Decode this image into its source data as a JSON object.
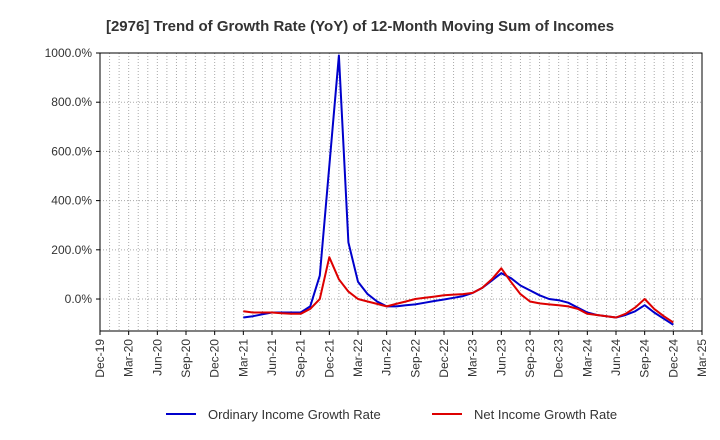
{
  "chart_data": {
    "type": "line",
    "title": "[2976]  Trend of Growth Rate (YoY) of 12-Month Moving Sum of Incomes",
    "xlabel": "",
    "ylabel": "",
    "x_ticks": [
      "Dec-19",
      "Mar-20",
      "Jun-20",
      "Sep-20",
      "Dec-20",
      "Mar-21",
      "Jun-21",
      "Sep-21",
      "Dec-21",
      "Mar-22",
      "Jun-22",
      "Sep-22",
      "Dec-22",
      "Mar-23",
      "Jun-23",
      "Sep-23",
      "Dec-23",
      "Mar-24",
      "Jun-24",
      "Sep-24",
      "Dec-24",
      "Mar-25"
    ],
    "y_ticks": [
      "1000.0%",
      "800.0%",
      "600.0%",
      "400.0%",
      "200.0%",
      "0.0%"
    ],
    "ylim": [
      -130,
      1000
    ],
    "grid": true,
    "legend_position": "bottom",
    "series": [
      {
        "name": "Ordinary Income Growth Rate",
        "color": "#0000cc",
        "points": [
          [
            "Mar-21",
            -75
          ],
          [
            "Apr-21",
            -70
          ],
          [
            "May-21",
            -62
          ],
          [
            "Jun-21",
            -55
          ],
          [
            "Jul-21",
            -55
          ],
          [
            "Aug-21",
            -55
          ],
          [
            "Sep-21",
            -55
          ],
          [
            "Oct-21",
            -30
          ],
          [
            "Nov-21",
            95
          ],
          [
            "Jan-22",
            990
          ],
          [
            "Feb-22",
            230
          ],
          [
            "Mar-22",
            70
          ],
          [
            "Apr-22",
            20
          ],
          [
            "May-22",
            -10
          ],
          [
            "Jun-22",
            -30
          ],
          [
            "Jul-22",
            -30
          ],
          [
            "Aug-22",
            -25
          ],
          [
            "Sep-22",
            -22
          ],
          [
            "Oct-22",
            -15
          ],
          [
            "Nov-22",
            -8
          ],
          [
            "Dec-22",
            -2
          ],
          [
            "Jan-23",
            5
          ],
          [
            "Feb-23",
            12
          ],
          [
            "Mar-23",
            25
          ],
          [
            "Apr-23",
            45
          ],
          [
            "May-23",
            75
          ],
          [
            "Jun-23",
            105
          ],
          [
            "Jul-23",
            85
          ],
          [
            "Aug-23",
            55
          ],
          [
            "Sep-23",
            35
          ],
          [
            "Oct-23",
            15
          ],
          [
            "Nov-23",
            0
          ],
          [
            "Dec-23",
            -5
          ],
          [
            "Jan-24",
            -15
          ],
          [
            "Feb-24",
            -35
          ],
          [
            "Mar-24",
            -55
          ],
          [
            "Apr-24",
            -65
          ],
          [
            "May-24",
            -70
          ],
          [
            "Jun-24",
            -75
          ],
          [
            "Jul-24",
            -65
          ],
          [
            "Aug-24",
            -50
          ],
          [
            "Sep-24",
            -25
          ],
          [
            "Oct-24",
            -55
          ],
          [
            "Nov-24",
            -80
          ],
          [
            "Dec-24",
            -105
          ]
        ]
      },
      {
        "name": "Net Income Growth Rate",
        "color": "#dd0000",
        "points": [
          [
            "Mar-21",
            -50
          ],
          [
            "Apr-21",
            -55
          ],
          [
            "May-21",
            -55
          ],
          [
            "Jun-21",
            -55
          ],
          [
            "Jul-21",
            -58
          ],
          [
            "Aug-21",
            -60
          ],
          [
            "Sep-21",
            -60
          ],
          [
            "Oct-21",
            -40
          ],
          [
            "Nov-21",
            0
          ],
          [
            "Dec-21",
            170
          ],
          [
            "Jan-22",
            80
          ],
          [
            "Feb-22",
            30
          ],
          [
            "Mar-22",
            0
          ],
          [
            "Apr-22",
            -10
          ],
          [
            "May-22",
            -20
          ],
          [
            "Jun-22",
            -30
          ],
          [
            "Jul-22",
            -20
          ],
          [
            "Aug-22",
            -10
          ],
          [
            "Sep-22",
            0
          ],
          [
            "Oct-22",
            5
          ],
          [
            "Nov-22",
            10
          ],
          [
            "Dec-22",
            15
          ],
          [
            "Jan-23",
            18
          ],
          [
            "Feb-23",
            20
          ],
          [
            "Mar-23",
            25
          ],
          [
            "Apr-23",
            45
          ],
          [
            "May-23",
            80
          ],
          [
            "Jun-23",
            125
          ],
          [
            "Jul-23",
            70
          ],
          [
            "Aug-23",
            20
          ],
          [
            "Sep-23",
            -10
          ],
          [
            "Oct-23",
            -18
          ],
          [
            "Nov-23",
            -22
          ],
          [
            "Dec-23",
            -25
          ],
          [
            "Jan-24",
            -30
          ],
          [
            "Feb-24",
            -40
          ],
          [
            "Mar-24",
            -60
          ],
          [
            "Apr-24",
            -65
          ],
          [
            "May-24",
            -70
          ],
          [
            "Jun-24",
            -75
          ],
          [
            "Jul-24",
            -60
          ],
          [
            "Aug-24",
            -35
          ],
          [
            "Sep-24",
            0
          ],
          [
            "Oct-24",
            -40
          ],
          [
            "Nov-24",
            -70
          ],
          [
            "Dec-24",
            -95
          ]
        ]
      }
    ]
  }
}
